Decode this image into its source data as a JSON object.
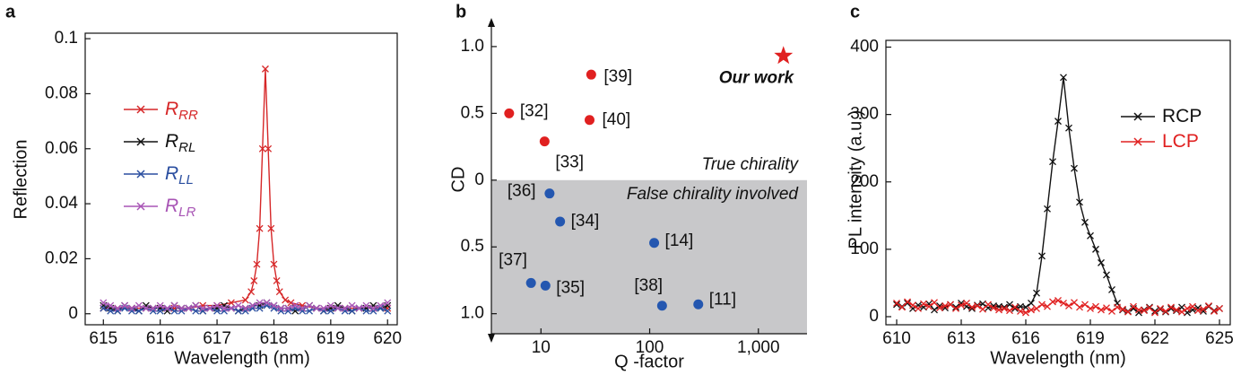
{
  "chart_data": [
    {
      "type": "line",
      "panel": "a",
      "xlabel": "Wavelength (nm)",
      "ylabel": "Reflection",
      "xlim": [
        614.68,
        620.17
      ],
      "ylim": [
        -0.004,
        0.102
      ],
      "xticks": [
        615,
        616,
        617,
        618,
        619,
        620
      ],
      "yticks": [
        0,
        0.02,
        0.04,
        0.06,
        0.08,
        0.1
      ],
      "x": [
        615,
        615.125,
        615.25,
        615.375,
        615.5,
        615.625,
        615.75,
        615.875,
        616,
        616.125,
        616.25,
        616.375,
        616.5,
        616.625,
        616.75,
        616.875,
        617,
        617.125,
        617.25,
        617.375,
        617.5,
        617.625,
        617.75,
        617.875,
        618,
        618.125,
        618.25,
        618.375,
        618.5,
        618.625,
        618.75,
        618.875,
        619,
        619.125,
        619.25,
        619.375,
        619.5,
        619.625,
        619.75,
        619.875,
        620
      ],
      "series": [
        {
          "name": "R",
          "name_sub": "RR",
          "color": "#d62728",
          "x": [
            615,
            615.25,
            615.5,
            615.75,
            616,
            616.25,
            616.5,
            616.75,
            617,
            617.25,
            617.5,
            617.6,
            617.65,
            617.7,
            617.75,
            617.8,
            617.85,
            617.9,
            617.95,
            618,
            618.05,
            618.1,
            618.2,
            618.3,
            618.5,
            618.75,
            619,
            619.25,
            619.5,
            619.75,
            620
          ],
          "values": [
            0.002,
            0.002,
            0.002,
            0.002,
            0.002,
            0.002,
            0.002,
            0.003,
            0.003,
            0.004,
            0.005,
            0.008,
            0.012,
            0.018,
            0.031,
            0.06,
            0.089,
            0.06,
            0.031,
            0.018,
            0.012,
            0.008,
            0.005,
            0.004,
            0.003,
            0.002,
            0.002,
            0.002,
            0.002,
            0.002,
            0.002
          ]
        },
        {
          "name": "R",
          "name_sub": "RL",
          "color": "#111111",
          "values": [
            0.003,
            0.002,
            0.001,
            0.003,
            0.002,
            0.001,
            0.003,
            0.002,
            0.002,
            0.001,
            0.003,
            0.002,
            0.002,
            0.003,
            0.001,
            0.002,
            0.002,
            0.003,
            0.002,
            0.001,
            0.002,
            0.003,
            0.003,
            0.004,
            0.003,
            0.002,
            0.002,
            0.001,
            0.002,
            0.003,
            0.002,
            0.001,
            0.002,
            0.003,
            0.002,
            0.001,
            0.002,
            0.002,
            0.003,
            0.002,
            0.003
          ]
        },
        {
          "name": "R",
          "name_sub": "LL",
          "color": "#2b4fa0",
          "values": [
            0.002,
            0.001,
            0.001,
            0.002,
            0.001,
            0.001,
            0.002,
            0.001,
            0.001,
            0.002,
            0.001,
            0.001,
            0.002,
            0.001,
            0.001,
            0.002,
            0.001,
            0.001,
            0.002,
            0.001,
            0.001,
            0.002,
            0.002,
            0.003,
            0.002,
            0.001,
            0.001,
            0.002,
            0.001,
            0.001,
            0.002,
            0.001,
            0.001,
            0.002,
            0.001,
            0.001,
            0.002,
            0.001,
            0.001,
            0.002,
            0.001
          ]
        },
        {
          "name": "R",
          "name_sub": "LR",
          "color": "#a855b5",
          "values": [
            0.004,
            0.003,
            0.002,
            0.003,
            0.002,
            0.003,
            0.002,
            0.002,
            0.003,
            0.002,
            0.003,
            0.002,
            0.002,
            0.003,
            0.002,
            0.002,
            0.003,
            0.002,
            0.002,
            0.003,
            0.002,
            0.003,
            0.004,
            0.004,
            0.003,
            0.002,
            0.002,
            0.003,
            0.002,
            0.003,
            0.002,
            0.002,
            0.003,
            0.002,
            0.002,
            0.003,
            0.002,
            0.003,
            0.002,
            0.003,
            0.004
          ]
        }
      ]
    },
    {
      "type": "scatter",
      "panel": "b",
      "xlabel": "Q -factor",
      "ylabel": "CD",
      "xscale": "log",
      "xlim": [
        3.5,
        2800
      ],
      "ylim": [
        -1.15,
        1.08
      ],
      "xticks": [
        10,
        100,
        {
          "value": 1000,
          "label": "1,000"
        }
      ],
      "yticks": [
        {
          "value": 1,
          "label": "1.0"
        },
        {
          "value": 0.5,
          "label": "0.5"
        },
        0,
        {
          "value": -0.5,
          "label": "0.5"
        },
        {
          "value": -1,
          "label": "1.0"
        }
      ],
      "shade_below": 0,
      "shade_color": "#c8c8ca",
      "annotations": [
        "True chirality",
        "False chirality involved"
      ],
      "series": [
        {
          "color": "#e02020",
          "marker": "circle",
          "x": [
            5.1,
            10.8,
            29,
            28
          ],
          "values": [
            0.5,
            0.29,
            0.79,
            0.45
          ],
          "labels": [
            "[32]",
            "[33]",
            "[39]",
            "[40]"
          ]
        },
        {
          "color": "#2457b0",
          "marker": "circle",
          "x": [
            12,
            15,
            110,
            8.1,
            11,
            130,
            280
          ],
          "values": [
            -0.1,
            -0.31,
            -0.47,
            -0.77,
            -0.79,
            -0.94,
            -0.93
          ],
          "labels": [
            "[36]",
            "[34]",
            "[14]",
            "[37]",
            "[35]",
            "[38]",
            "[11]"
          ]
        },
        {
          "color": "#e02020",
          "marker": "star",
          "x": [
            1700
          ],
          "values": [
            0.93
          ],
          "labels": [
            "Our work"
          ]
        }
      ]
    },
    {
      "type": "line",
      "panel": "c",
      "xlabel": "Wavelength (nm)",
      "ylabel": "PL intensity (a.u.)",
      "xlim": [
        609.5,
        625.5
      ],
      "ylim": [
        -12,
        410
      ],
      "xticks": [
        610,
        613,
        616,
        619,
        622,
        625
      ],
      "yticks": [
        0,
        100,
        200,
        300,
        400
      ],
      "x": [
        610,
        610.25,
        610.5,
        610.75,
        611,
        611.25,
        611.5,
        611.75,
        612,
        612.25,
        612.5,
        612.75,
        613,
        613.25,
        613.5,
        613.75,
        614,
        614.25,
        614.5,
        614.75,
        615,
        615.25,
        615.5,
        615.75,
        616,
        616.25,
        616.5,
        616.75,
        617,
        617.25,
        617.5,
        617.75,
        618,
        618.25,
        618.5,
        618.75,
        619,
        619.25,
        619.5,
        619.75,
        620,
        620.25,
        620.5,
        620.75,
        621,
        621.25,
        621.5,
        621.75,
        622,
        622.25,
        622.5,
        622.75,
        623,
        623.25,
        623.5,
        623.75,
        624,
        624.25,
        624.5,
        624.75,
        625
      ],
      "series": [
        {
          "name": "RCP",
          "color": "#111111",
          "values": [
            18,
            15,
            20,
            12,
            17,
            14,
            19,
            10,
            16,
            13,
            18,
            14,
            20,
            15,
            12,
            17,
            19,
            13,
            16,
            15,
            14,
            18,
            12,
            15,
            14,
            20,
            35,
            90,
            160,
            230,
            290,
            355,
            280,
            220,
            170,
            140,
            120,
            100,
            80,
            62,
            40,
            20,
            10,
            8,
            12,
            6,
            10,
            14,
            8,
            11,
            7,
            12,
            9,
            14,
            6,
            10,
            13,
            8,
            15,
            9,
            12
          ]
        },
        {
          "name": "LCP",
          "color": "#e02020",
          "values": [
            20,
            14,
            22,
            17,
            12,
            19,
            15,
            21,
            13,
            16,
            18,
            12,
            17,
            20,
            14,
            16,
            11,
            18,
            13,
            10,
            12,
            9,
            14,
            8,
            6,
            10,
            12,
            18,
            15,
            22,
            24,
            20,
            16,
            21,
            14,
            18,
            12,
            15,
            10,
            13,
            8,
            14,
            11,
            7,
            15,
            10,
            9,
            13,
            6,
            12,
            8,
            14,
            10,
            7,
            12,
            15,
            9,
            11,
            16,
            8,
            12
          ]
        }
      ]
    }
  ]
}
